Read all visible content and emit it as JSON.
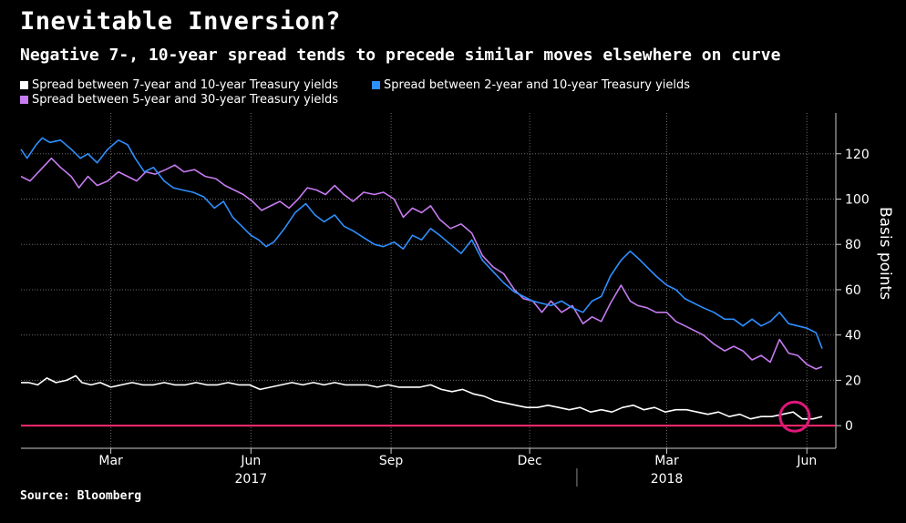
{
  "chart_data": {
    "type": "line",
    "title": "Inevitable Inversion?",
    "subtitle": "Negative 7-, 10-year spread tends to precede similar moves elsewhere on curve",
    "ylabel": "Basis points",
    "ylim": [
      -10,
      138
    ],
    "y_ticks": [
      0,
      20,
      40,
      60,
      80,
      100,
      120
    ],
    "xlim": [
      "2017-01-01",
      "2018-06-20"
    ],
    "x_ticks": [
      {
        "date": "2017-03-01",
        "label": "Mar"
      },
      {
        "date": "2017-06-01",
        "label": "Jun"
      },
      {
        "date": "2017-09-01",
        "label": "Sep"
      },
      {
        "date": "2017-12-01",
        "label": "Dec"
      },
      {
        "date": "2018-03-01",
        "label": "Mar"
      },
      {
        "date": "2018-06-01",
        "label": "Jun"
      }
    ],
    "x_year_labels": [
      {
        "date": "2017-06-01",
        "label": "2017"
      },
      {
        "date": "2018-03-01",
        "label": "2018"
      }
    ],
    "year_divider": "2018-01-01",
    "zero_line_color": "#ff2a6d",
    "highlight_circle": {
      "date": "2018-05-24",
      "value": 4,
      "color": "#e0167a"
    },
    "grid": true,
    "legend_position": "top-left",
    "series": [
      {
        "name": "Spread between 7-year and 10-year Treasury yields",
        "color": "#ffffff",
        "points": [
          [
            "2017-01-01",
            19
          ],
          [
            "2017-01-06",
            19
          ],
          [
            "2017-01-12",
            18
          ],
          [
            "2017-01-18",
            21
          ],
          [
            "2017-01-24",
            19
          ],
          [
            "2017-01-31",
            20
          ],
          [
            "2017-02-06",
            22
          ],
          [
            "2017-02-10",
            19
          ],
          [
            "2017-02-16",
            18
          ],
          [
            "2017-02-22",
            19
          ],
          [
            "2017-03-01",
            17
          ],
          [
            "2017-03-08",
            18
          ],
          [
            "2017-03-15",
            19
          ],
          [
            "2017-03-22",
            18
          ],
          [
            "2017-03-29",
            18
          ],
          [
            "2017-04-05",
            19
          ],
          [
            "2017-04-12",
            18
          ],
          [
            "2017-04-19",
            18
          ],
          [
            "2017-04-26",
            19
          ],
          [
            "2017-05-03",
            18
          ],
          [
            "2017-05-10",
            18
          ],
          [
            "2017-05-17",
            19
          ],
          [
            "2017-05-24",
            18
          ],
          [
            "2017-05-31",
            18
          ],
          [
            "2017-06-07",
            16
          ],
          [
            "2017-06-14",
            17
          ],
          [
            "2017-06-21",
            18
          ],
          [
            "2017-06-28",
            19
          ],
          [
            "2017-07-05",
            18
          ],
          [
            "2017-07-12",
            19
          ],
          [
            "2017-07-19",
            18
          ],
          [
            "2017-07-26",
            19
          ],
          [
            "2017-08-02",
            18
          ],
          [
            "2017-08-09",
            18
          ],
          [
            "2017-08-16",
            18
          ],
          [
            "2017-08-23",
            17
          ],
          [
            "2017-08-30",
            18
          ],
          [
            "2017-09-06",
            17
          ],
          [
            "2017-09-13",
            17
          ],
          [
            "2017-09-20",
            17
          ],
          [
            "2017-09-27",
            18
          ],
          [
            "2017-10-04",
            16
          ],
          [
            "2017-10-11",
            15
          ],
          [
            "2017-10-18",
            16
          ],
          [
            "2017-10-25",
            14
          ],
          [
            "2017-11-01",
            13
          ],
          [
            "2017-11-08",
            11
          ],
          [
            "2017-11-15",
            10
          ],
          [
            "2017-11-22",
            9
          ],
          [
            "2017-11-29",
            8
          ],
          [
            "2017-12-06",
            8
          ],
          [
            "2017-12-13",
            9
          ],
          [
            "2017-12-20",
            8
          ],
          [
            "2017-12-27",
            7
          ],
          [
            "2018-01-03",
            8
          ],
          [
            "2018-01-10",
            6
          ],
          [
            "2018-01-17",
            7
          ],
          [
            "2018-01-24",
            6
          ],
          [
            "2018-01-31",
            8
          ],
          [
            "2018-02-07",
            9
          ],
          [
            "2018-02-14",
            7
          ],
          [
            "2018-02-21",
            8
          ],
          [
            "2018-02-28",
            6
          ],
          [
            "2018-03-07",
            7
          ],
          [
            "2018-03-14",
            7
          ],
          [
            "2018-03-21",
            6
          ],
          [
            "2018-03-28",
            5
          ],
          [
            "2018-04-04",
            6
          ],
          [
            "2018-04-11",
            4
          ],
          [
            "2018-04-18",
            5
          ],
          [
            "2018-04-25",
            3
          ],
          [
            "2018-05-02",
            4
          ],
          [
            "2018-05-09",
            4
          ],
          [
            "2018-05-16",
            5
          ],
          [
            "2018-05-23",
            6
          ],
          [
            "2018-05-29",
            3
          ],
          [
            "2018-06-05",
            3
          ],
          [
            "2018-06-11",
            4
          ]
        ]
      },
      {
        "name": "Spread between 2-year and 10-year Treasury yields",
        "color": "#2e8fff",
        "points": [
          [
            "2017-01-01",
            122
          ],
          [
            "2017-01-05",
            118
          ],
          [
            "2017-01-11",
            124
          ],
          [
            "2017-01-15",
            127
          ],
          [
            "2017-01-20",
            125
          ],
          [
            "2017-01-27",
            126
          ],
          [
            "2017-02-03",
            122
          ],
          [
            "2017-02-09",
            118
          ],
          [
            "2017-02-14",
            120
          ],
          [
            "2017-02-20",
            116
          ],
          [
            "2017-02-27",
            122
          ],
          [
            "2017-03-06",
            126
          ],
          [
            "2017-03-12",
            124
          ],
          [
            "2017-03-17",
            118
          ],
          [
            "2017-03-23",
            112
          ],
          [
            "2017-03-29",
            114
          ],
          [
            "2017-04-05",
            108
          ],
          [
            "2017-04-11",
            105
          ],
          [
            "2017-04-17",
            104
          ],
          [
            "2017-04-24",
            103
          ],
          [
            "2017-05-01",
            101
          ],
          [
            "2017-05-08",
            96
          ],
          [
            "2017-05-14",
            99
          ],
          [
            "2017-05-20",
            92
          ],
          [
            "2017-05-26",
            88
          ],
          [
            "2017-06-01",
            84
          ],
          [
            "2017-06-06",
            82
          ],
          [
            "2017-06-11",
            79
          ],
          [
            "2017-06-16",
            81
          ],
          [
            "2017-06-23",
            87
          ],
          [
            "2017-06-30",
            94
          ],
          [
            "2017-07-07",
            98
          ],
          [
            "2017-07-13",
            93
          ],
          [
            "2017-07-19",
            90
          ],
          [
            "2017-07-26",
            93
          ],
          [
            "2017-08-01",
            88
          ],
          [
            "2017-08-07",
            86
          ],
          [
            "2017-08-14",
            83
          ],
          [
            "2017-08-21",
            80
          ],
          [
            "2017-08-27",
            79
          ],
          [
            "2017-09-03",
            81
          ],
          [
            "2017-09-09",
            78
          ],
          [
            "2017-09-15",
            84
          ],
          [
            "2017-09-21",
            82
          ],
          [
            "2017-09-27",
            87
          ],
          [
            "2017-10-03",
            84
          ],
          [
            "2017-10-10",
            80
          ],
          [
            "2017-10-17",
            76
          ],
          [
            "2017-10-24",
            82
          ],
          [
            "2017-10-31",
            73
          ],
          [
            "2017-11-07",
            68
          ],
          [
            "2017-11-14",
            63
          ],
          [
            "2017-11-21",
            59
          ],
          [
            "2017-11-27",
            57
          ],
          [
            "2017-12-03",
            55
          ],
          [
            "2017-12-09",
            54
          ],
          [
            "2017-12-15",
            53
          ],
          [
            "2017-12-22",
            55
          ],
          [
            "2017-12-29",
            52
          ],
          [
            "2018-01-05",
            50
          ],
          [
            "2018-01-11",
            55
          ],
          [
            "2018-01-17",
            57
          ],
          [
            "2018-01-23",
            66
          ],
          [
            "2018-01-30",
            73
          ],
          [
            "2018-02-05",
            77
          ],
          [
            "2018-02-10",
            74
          ],
          [
            "2018-02-16",
            70
          ],
          [
            "2018-02-22",
            66
          ],
          [
            "2018-03-01",
            62
          ],
          [
            "2018-03-07",
            60
          ],
          [
            "2018-03-13",
            56
          ],
          [
            "2018-03-19",
            54
          ],
          [
            "2018-03-25",
            52
          ],
          [
            "2018-04-01",
            50
          ],
          [
            "2018-04-08",
            47
          ],
          [
            "2018-04-14",
            47
          ],
          [
            "2018-04-20",
            44
          ],
          [
            "2018-04-26",
            47
          ],
          [
            "2018-05-02",
            44
          ],
          [
            "2018-05-08",
            46
          ],
          [
            "2018-05-14",
            50
          ],
          [
            "2018-05-20",
            45
          ],
          [
            "2018-05-26",
            44
          ],
          [
            "2018-06-01",
            43
          ],
          [
            "2018-06-07",
            41
          ],
          [
            "2018-06-11",
            34
          ]
        ]
      },
      {
        "name": "Spread between 5-year and 30-year Treasury yields",
        "color": "#c67bf0",
        "points": [
          [
            "2017-01-01",
            110
          ],
          [
            "2017-01-07",
            108
          ],
          [
            "2017-01-14",
            113
          ],
          [
            "2017-01-21",
            118
          ],
          [
            "2017-01-27",
            114
          ],
          [
            "2017-02-03",
            110
          ],
          [
            "2017-02-08",
            105
          ],
          [
            "2017-02-14",
            110
          ],
          [
            "2017-02-20",
            106
          ],
          [
            "2017-02-27",
            108
          ],
          [
            "2017-03-06",
            112
          ],
          [
            "2017-03-12",
            110
          ],
          [
            "2017-03-18",
            108
          ],
          [
            "2017-03-24",
            112
          ],
          [
            "2017-03-30",
            111
          ],
          [
            "2017-04-06",
            113
          ],
          [
            "2017-04-12",
            115
          ],
          [
            "2017-04-18",
            112
          ],
          [
            "2017-04-25",
            113
          ],
          [
            "2017-05-02",
            110
          ],
          [
            "2017-05-09",
            109
          ],
          [
            "2017-05-15",
            106
          ],
          [
            "2017-05-21",
            104
          ],
          [
            "2017-05-27",
            102
          ],
          [
            "2017-06-02",
            99
          ],
          [
            "2017-06-08",
            95
          ],
          [
            "2017-06-14",
            97
          ],
          [
            "2017-06-20",
            99
          ],
          [
            "2017-06-26",
            96
          ],
          [
            "2017-07-02",
            100
          ],
          [
            "2017-07-08",
            105
          ],
          [
            "2017-07-14",
            104
          ],
          [
            "2017-07-20",
            102
          ],
          [
            "2017-07-26",
            106
          ],
          [
            "2017-08-01",
            102
          ],
          [
            "2017-08-07",
            99
          ],
          [
            "2017-08-14",
            103
          ],
          [
            "2017-08-21",
            102
          ],
          [
            "2017-08-27",
            103
          ],
          [
            "2017-09-03",
            100
          ],
          [
            "2017-09-09",
            92
          ],
          [
            "2017-09-15",
            96
          ],
          [
            "2017-09-21",
            94
          ],
          [
            "2017-09-27",
            97
          ],
          [
            "2017-10-03",
            91
          ],
          [
            "2017-10-10",
            87
          ],
          [
            "2017-10-17",
            89
          ],
          [
            "2017-10-24",
            85
          ],
          [
            "2017-10-31",
            75
          ],
          [
            "2017-11-07",
            70
          ],
          [
            "2017-11-14",
            67
          ],
          [
            "2017-11-21",
            60
          ],
          [
            "2017-11-27",
            56
          ],
          [
            "2017-12-03",
            55
          ],
          [
            "2017-12-09",
            50
          ],
          [
            "2017-12-15",
            55
          ],
          [
            "2017-12-22",
            50
          ],
          [
            "2017-12-29",
            53
          ],
          [
            "2018-01-05",
            45
          ],
          [
            "2018-01-11",
            48
          ],
          [
            "2018-01-17",
            46
          ],
          [
            "2018-01-23",
            54
          ],
          [
            "2018-01-30",
            62
          ],
          [
            "2018-02-05",
            55
          ],
          [
            "2018-02-10",
            53
          ],
          [
            "2018-02-16",
            52
          ],
          [
            "2018-02-22",
            50
          ],
          [
            "2018-03-01",
            50
          ],
          [
            "2018-03-07",
            46
          ],
          [
            "2018-03-13",
            44
          ],
          [
            "2018-03-19",
            42
          ],
          [
            "2018-03-25",
            40
          ],
          [
            "2018-04-01",
            36
          ],
          [
            "2018-04-08",
            33
          ],
          [
            "2018-04-14",
            35
          ],
          [
            "2018-04-20",
            33
          ],
          [
            "2018-04-26",
            29
          ],
          [
            "2018-05-02",
            31
          ],
          [
            "2018-05-08",
            28
          ],
          [
            "2018-05-14",
            38
          ],
          [
            "2018-05-20",
            32
          ],
          [
            "2018-05-26",
            31
          ],
          [
            "2018-06-01",
            27
          ],
          [
            "2018-06-07",
            25
          ],
          [
            "2018-06-11",
            26
          ]
        ]
      }
    ]
  },
  "legend_color_white": "#ffffff",
  "source": "Source: Bloomberg"
}
